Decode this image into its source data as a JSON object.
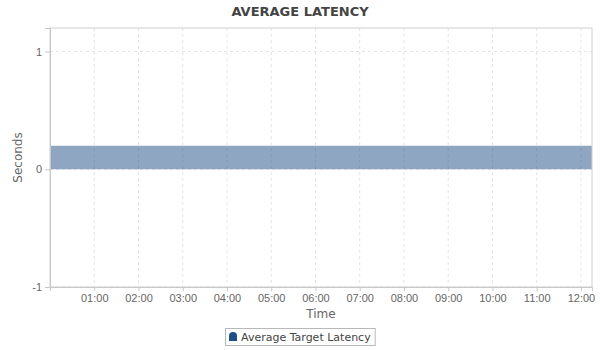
{
  "chart_data": {
    "type": "area",
    "title": "AVERAGE LATENCY",
    "x_label": "Time",
    "y_label": "Seconds",
    "x": [
      0,
      1,
      2,
      3,
      4,
      5,
      6,
      7,
      8,
      9,
      10,
      11,
      12,
      12.25
    ],
    "series": [
      {
        "name": "Average Target Latency",
        "color": "#1f4e85",
        "values": [
          0.2,
          0.2,
          0.2,
          0.2,
          0.2,
          0.2,
          0.2,
          0.2,
          0.2,
          0.2,
          0.2,
          0.2,
          0.2,
          0.2
        ]
      }
    ],
    "xlim": [
      0,
      12.25
    ],
    "xticks": [
      {
        "value": 1,
        "label": "01:00"
      },
      {
        "value": 2,
        "label": "02:00"
      },
      {
        "value": 3,
        "label": "03:00"
      },
      {
        "value": 4,
        "label": "04:00"
      },
      {
        "value": 5,
        "label": "05:00"
      },
      {
        "value": 6,
        "label": "06:00"
      },
      {
        "value": 7,
        "label": "07:00"
      },
      {
        "value": 8,
        "label": "08:00"
      },
      {
        "value": 9,
        "label": "09:00"
      },
      {
        "value": 10,
        "label": "10:00"
      },
      {
        "value": 11,
        "label": "11:00"
      },
      {
        "value": 12,
        "label": "12:00"
      }
    ],
    "ylim": [
      -1,
      1.2
    ],
    "yticks": [
      -1,
      0,
      1
    ],
    "grid": true,
    "legend": "bottom"
  }
}
